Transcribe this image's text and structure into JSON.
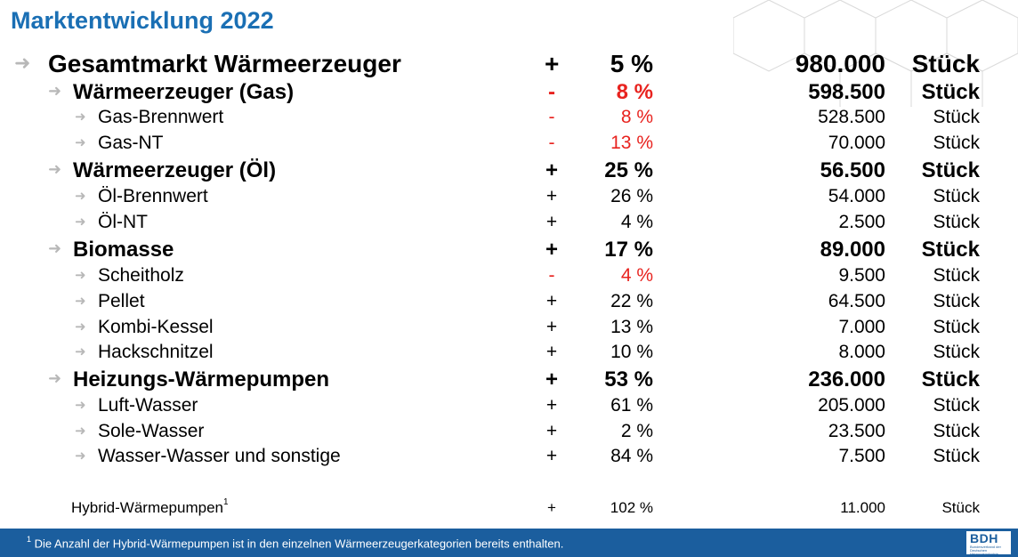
{
  "title": "Marktentwicklung 2022",
  "rows": [
    {
      "level": 0,
      "label": "Gesamtmarkt Wärmeerzeuger",
      "sign": "+",
      "pct": "5 %",
      "value": "980.000",
      "unit": "Stück",
      "negative": false
    },
    {
      "level": 1,
      "label": "Wärmeerzeuger (Gas)",
      "sign": "-",
      "pct": "8 %",
      "value": "598.500",
      "unit": "Stück",
      "negative": true
    },
    {
      "level": 2,
      "label": "Gas-Brennwert",
      "sign": "-",
      "pct": "8 %",
      "value": "528.500",
      "unit": "Stück",
      "negative": true
    },
    {
      "level": 2,
      "label": "Gas-NT",
      "sign": "-",
      "pct": "13 %",
      "value": "70.000",
      "unit": "Stück",
      "negative": true
    },
    {
      "level": 1,
      "label": "Wärmeerzeuger (Öl)",
      "sign": "+",
      "pct": "25 %",
      "value": "56.500",
      "unit": "Stück",
      "negative": false
    },
    {
      "level": 2,
      "label": "Öl-Brennwert",
      "sign": "+",
      "pct": "26 %",
      "value": "54.000",
      "unit": "Stück",
      "negative": false
    },
    {
      "level": 2,
      "label": "Öl-NT",
      "sign": "+",
      "pct": "4 %",
      "value": "2.500",
      "unit": "Stück",
      "negative": false
    },
    {
      "level": 1,
      "label": "Biomasse",
      "sign": "+",
      "pct": "17 %",
      "value": "89.000",
      "unit": "Stück",
      "negative": false
    },
    {
      "level": 2,
      "label": "Scheitholz",
      "sign": "-",
      "pct": "4 %",
      "value": "9.500",
      "unit": "Stück",
      "negative": true
    },
    {
      "level": 2,
      "label": "Pellet",
      "sign": "+",
      "pct": "22 %",
      "value": "64.500",
      "unit": "Stück",
      "negative": false
    },
    {
      "level": 2,
      "label": "Kombi-Kessel",
      "sign": "+",
      "pct": "13 %",
      "value": "7.000",
      "unit": "Stück",
      "negative": false
    },
    {
      "level": 2,
      "label": "Hackschnitzel",
      "sign": "+",
      "pct": "10 %",
      "value": "8.000",
      "unit": "Stück",
      "negative": false
    },
    {
      "level": 1,
      "label": "Heizungs-Wärmepumpen",
      "sign": "+",
      "pct": "53 %",
      "value": "236.000",
      "unit": "Stück",
      "negative": false
    },
    {
      "level": 2,
      "label": "Luft-Wasser",
      "sign": "+",
      "pct": "61 %",
      "value": "205.000",
      "unit": "Stück",
      "negative": false
    },
    {
      "level": 2,
      "label": "Sole-Wasser",
      "sign": "+",
      "pct": "2 %",
      "value": "23.500",
      "unit": "Stück",
      "negative": false
    },
    {
      "level": 2,
      "label": "Wasser-Wasser und sonstige",
      "sign": "+",
      "pct": "84 %",
      "value": "7.500",
      "unit": "Stück",
      "negative": false
    },
    {
      "level": 3,
      "label": "Hybrid-Wärmepumpen",
      "sup": "1",
      "sign": "+",
      "pct": "102 %",
      "value": "11.000",
      "unit": "Stück",
      "negative": false
    }
  ],
  "footnote": {
    "marker": "1",
    "text": "Die Anzahl der Hybrid-Wärmepumpen ist in den einzelnen Wärmeerzeugerkategorien bereits enthalten."
  },
  "logo": {
    "name": "BDH",
    "subtitle": "Bundesverband der Deutschen Heizungsindustrie"
  },
  "colors": {
    "title": "#1a6fb4",
    "footer": "#1b5e9e",
    "negative": "#e8231f",
    "arrow": "#b8b8b8"
  },
  "icons": {
    "row_bullet": "arrow-right-icon",
    "decoration": "hexagon-pattern-icon"
  }
}
